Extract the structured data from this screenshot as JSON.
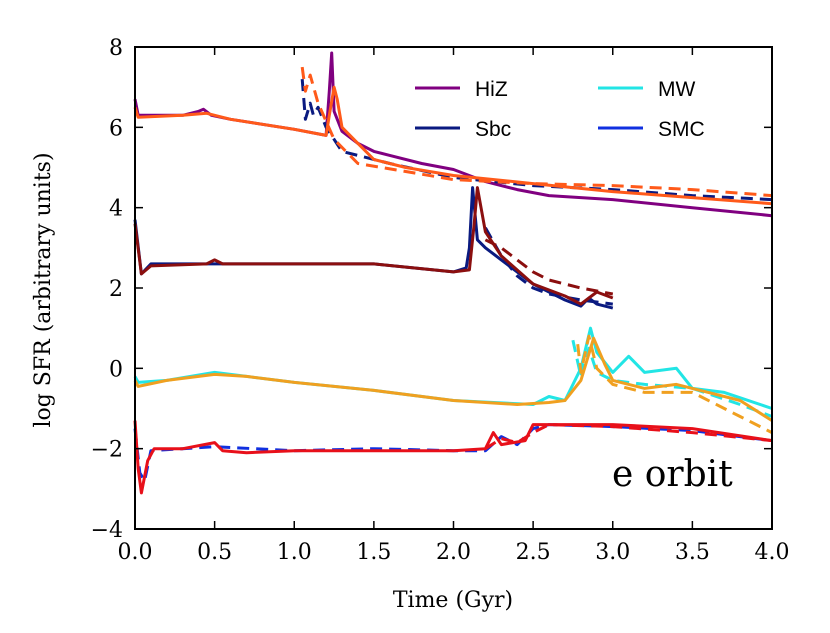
{
  "chart_data": {
    "type": "line",
    "title": "",
    "xlabel": "Time (Gyr)",
    "ylabel": "log SFR (arbitrary units)",
    "xlim": [
      0.0,
      4.0
    ],
    "ylim": [
      -4,
      8
    ],
    "xticks": [
      0.0,
      0.5,
      1.0,
      1.5,
      2.0,
      2.5,
      3.0,
      3.5,
      4.0
    ],
    "xtick_labels": [
      "0.0",
      "0.5",
      "1.0",
      "1.5",
      "2.0",
      "2.5",
      "3.0",
      "3.5",
      "4.0"
    ],
    "yticks": [
      -4,
      -2,
      0,
      2,
      4,
      6,
      8
    ],
    "ytick_labels": [
      "−4",
      "−2",
      "0",
      "2",
      "4",
      "6",
      "8"
    ],
    "grid": false,
    "legend_position": "top-right",
    "annotation": "e orbit",
    "legend": [
      {
        "name": "HiZ",
        "color": "#800080"
      },
      {
        "name": "MW",
        "color": "#22e5e5"
      },
      {
        "name": "Sbc",
        "color": "#0a1a80"
      },
      {
        "name": "SMC",
        "color": "#1030e0"
      }
    ],
    "series": [
      {
        "name": "HiZ solid",
        "color": "#800080",
        "dash": "solid",
        "group": "HiZ",
        "x": [
          0.0,
          0.02,
          0.3,
          0.4,
          0.43,
          0.48,
          0.6,
          1.0,
          1.2,
          1.22,
          1.235,
          1.25,
          1.3,
          1.4,
          1.5,
          1.6,
          1.8,
          2.0,
          2.2,
          2.4,
          2.6,
          3.0,
          3.5,
          4.0
        ],
        "y": [
          6.7,
          6.3,
          6.3,
          6.4,
          6.45,
          6.3,
          6.2,
          5.95,
          5.8,
          6.9,
          7.85,
          6.4,
          5.9,
          5.6,
          5.4,
          5.3,
          5.1,
          4.95,
          4.65,
          4.45,
          4.3,
          4.2,
          4.0,
          3.8
        ]
      },
      {
        "name": "Sbc upper dashed",
        "color": "#0a1a80",
        "dash": "dashed",
        "group": "Sbc",
        "x": [
          1.05,
          1.07,
          1.1,
          1.12,
          1.15,
          1.2,
          1.3,
          1.6,
          2.0,
          2.5,
          3.0,
          3.5,
          4.0
        ],
        "y": [
          7.2,
          6.2,
          6.6,
          6.3,
          6.5,
          6.0,
          5.4,
          5.1,
          4.75,
          4.55,
          4.45,
          4.3,
          4.2
        ]
      },
      {
        "name": "HiZ orange solid",
        "color": "#ff5a1a",
        "dash": "solid",
        "group": "HiZ",
        "x": [
          0.0,
          0.02,
          0.3,
          0.45,
          0.6,
          1.0,
          1.2,
          1.22,
          1.25,
          1.27,
          1.3,
          1.4,
          1.5,
          1.7,
          2.0,
          2.5,
          3.0,
          3.5,
          4.0
        ],
        "y": [
          6.5,
          6.25,
          6.3,
          6.35,
          6.2,
          5.95,
          5.8,
          6.3,
          7.0,
          6.7,
          6.0,
          5.6,
          5.2,
          5.0,
          4.8,
          4.6,
          4.4,
          4.25,
          4.1
        ]
      },
      {
        "name": "HiZ orange dashed",
        "color": "#ff5a1a",
        "dash": "dashed",
        "group": "HiZ",
        "x": [
          1.05,
          1.07,
          1.1,
          1.15,
          1.25,
          1.4,
          1.7,
          2.0,
          2.5,
          3.0,
          3.5,
          4.0
        ],
        "y": [
          7.5,
          6.9,
          7.3,
          6.6,
          5.7,
          5.1,
          4.9,
          4.7,
          4.6,
          4.55,
          4.45,
          4.3
        ]
      },
      {
        "name": "Sbc middle solid",
        "color": "#0a1a80",
        "dash": "solid",
        "group": "Sbc",
        "x": [
          0.0,
          0.04,
          0.1,
          0.5,
          1.0,
          1.5,
          2.0,
          2.08,
          2.1,
          2.12,
          2.15,
          2.2,
          2.3,
          2.5,
          2.7,
          2.8,
          2.85,
          2.9,
          3.0
        ],
        "y": [
          3.7,
          2.35,
          2.6,
          2.6,
          2.6,
          2.6,
          2.4,
          2.5,
          3.0,
          4.5,
          3.2,
          3.0,
          2.7,
          2.1,
          1.7,
          1.55,
          1.75,
          1.6,
          1.5
        ]
      },
      {
        "name": "Sbc middle dashed",
        "color": "#0a1a80",
        "dash": "dashed",
        "group": "Sbc",
        "x": [
          2.2,
          2.3,
          2.4,
          2.5,
          2.6,
          2.8,
          3.0
        ],
        "y": [
          3.5,
          2.8,
          2.3,
          2.0,
          1.85,
          1.7,
          1.6
        ]
      },
      {
        "name": "dark red solid",
        "color": "#8b0f0f",
        "dash": "solid",
        "group": "Sbc",
        "x": [
          0.0,
          0.04,
          0.1,
          0.45,
          0.5,
          0.55,
          1.0,
          1.5,
          2.0,
          2.1,
          2.13,
          2.15,
          2.2,
          2.3,
          2.5,
          2.7,
          2.8,
          2.9,
          3.0
        ],
        "y": [
          3.6,
          2.35,
          2.55,
          2.6,
          2.7,
          2.6,
          2.6,
          2.6,
          2.4,
          2.45,
          3.6,
          4.5,
          3.4,
          2.8,
          2.1,
          1.8,
          1.6,
          1.9,
          1.75
        ]
      },
      {
        "name": "dark red dashed",
        "color": "#8b0f0f",
        "dash": "dashed",
        "group": "Sbc",
        "x": [
          2.2,
          2.3,
          2.4,
          2.5,
          2.6,
          2.8,
          3.0
        ],
        "y": [
          3.2,
          3.0,
          2.7,
          2.4,
          2.2,
          2.0,
          1.85
        ]
      },
      {
        "name": "MW solid",
        "color": "#22e5e5",
        "dash": "solid",
        "group": "MW",
        "x": [
          0.0,
          0.02,
          0.2,
          0.5,
          0.7,
          1.0,
          1.5,
          2.0,
          2.5,
          2.6,
          2.7,
          2.8,
          2.86,
          2.9,
          3.0,
          3.1,
          3.2,
          3.4,
          3.5,
          3.7,
          4.0
        ],
        "y": [
          -0.2,
          -0.35,
          -0.3,
          -0.1,
          -0.2,
          -0.35,
          -0.55,
          -0.8,
          -0.9,
          -0.7,
          -0.8,
          0.0,
          1.0,
          0.4,
          -0.1,
          0.3,
          -0.1,
          0.0,
          -0.5,
          -0.6,
          -1.0
        ]
      },
      {
        "name": "MW dashed",
        "color": "#22e5e5",
        "dash": "dashed",
        "group": "MW",
        "x": [
          2.75,
          2.8,
          2.85,
          2.9,
          3.0,
          3.2,
          3.5,
          3.8,
          4.0
        ],
        "y": [
          0.7,
          -0.2,
          0.5,
          -0.1,
          -0.3,
          -0.4,
          -0.5,
          -0.9,
          -1.2
        ]
      },
      {
        "name": "MW orange solid",
        "color": "#f0a020",
        "dash": "solid",
        "group": "MW",
        "x": [
          0.0,
          0.02,
          0.2,
          0.5,
          0.7,
          1.0,
          1.5,
          2.0,
          2.4,
          2.6,
          2.7,
          2.8,
          2.88,
          2.95,
          3.0,
          3.2,
          3.4,
          3.6,
          3.8,
          4.0
        ],
        "y": [
          -0.3,
          -0.45,
          -0.3,
          -0.15,
          -0.2,
          -0.35,
          -0.55,
          -0.8,
          -0.9,
          -0.85,
          -0.8,
          -0.3,
          0.75,
          0.1,
          -0.3,
          -0.5,
          -0.4,
          -0.6,
          -0.8,
          -1.3
        ]
      },
      {
        "name": "MW orange dashed",
        "color": "#f0a020",
        "dash": "dashed",
        "group": "MW",
        "x": [
          2.78,
          2.8,
          2.85,
          2.9,
          3.0,
          3.2,
          3.5,
          3.8,
          4.0
        ],
        "y": [
          0.6,
          -0.1,
          0.8,
          0.0,
          -0.4,
          -0.6,
          -0.6,
          -1.2,
          -1.6
        ]
      },
      {
        "name": "SMC dashed",
        "color": "#1030e0",
        "dash": "dashed",
        "group": "SMC",
        "x": [
          0.0,
          0.03,
          0.06,
          0.1,
          0.5,
          1.0,
          1.5,
          2.0,
          2.2,
          2.3,
          2.4,
          2.5,
          2.6,
          3.0,
          3.5,
          4.0
        ],
        "y": [
          -1.5,
          -2.6,
          -2.8,
          -2.05,
          -1.95,
          -2.05,
          -2.0,
          -2.05,
          -2.05,
          -1.7,
          -1.9,
          -1.5,
          -1.4,
          -1.45,
          -1.55,
          -1.8
        ]
      },
      {
        "name": "SMC red solid",
        "color": "#e8101a",
        "dash": "solid",
        "group": "SMC",
        "x": [
          0.0,
          0.02,
          0.04,
          0.08,
          0.12,
          0.3,
          0.5,
          0.55,
          0.7,
          1.0,
          1.5,
          2.0,
          2.2,
          2.25,
          2.3,
          2.45,
          2.5,
          2.6,
          3.0,
          3.5,
          4.0
        ],
        "y": [
          -1.3,
          -2.5,
          -3.1,
          -2.3,
          -2.0,
          -2.0,
          -1.85,
          -2.05,
          -2.1,
          -2.05,
          -2.05,
          -2.05,
          -2.0,
          -1.6,
          -1.9,
          -1.8,
          -1.4,
          -1.4,
          -1.4,
          -1.5,
          -1.8
        ]
      },
      {
        "name": "SMC red dashed",
        "color": "#e8101a",
        "dash": "dashed",
        "group": "SMC",
        "x": [
          2.2,
          2.3,
          2.4,
          2.5,
          2.6,
          3.0,
          3.5,
          4.0
        ],
        "y": [
          -2.0,
          -1.75,
          -1.85,
          -1.6,
          -1.4,
          -1.45,
          -1.6,
          -1.8
        ]
      }
    ]
  }
}
